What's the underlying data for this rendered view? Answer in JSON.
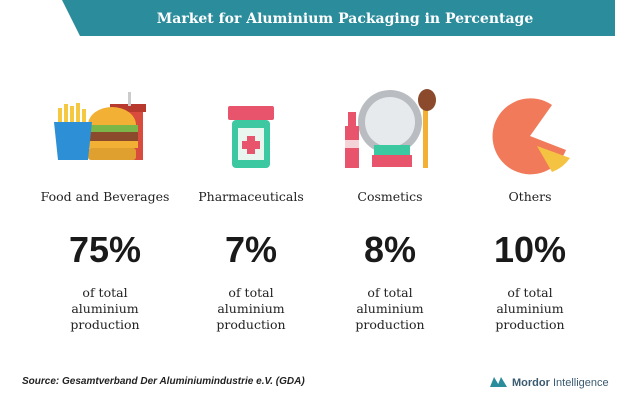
{
  "header": {
    "title": "Market for Aluminium Packaging in Percentage"
  },
  "items": [
    {
      "label": "Food and Beverages",
      "share": "75%",
      "description": [
        "of total",
        "aluminium",
        "production"
      ]
    },
    {
      "label": "Pharmaceuticals",
      "share": "7%",
      "description": [
        "of total",
        "aluminium",
        "production"
      ]
    },
    {
      "label": "Cosmetics",
      "share": "8%",
      "description": [
        "of total",
        "aluminium",
        "production"
      ]
    },
    {
      "label": "Others",
      "share": "10%",
      "description": [
        "of total",
        "aluminium",
        "production"
      ]
    }
  ],
  "footer": {
    "source": "Source: Gesamtverband Der Aluminiumindustrie e.V. (GDA)",
    "logo": [
      "Mordor",
      "Intelligence"
    ]
  }
}
